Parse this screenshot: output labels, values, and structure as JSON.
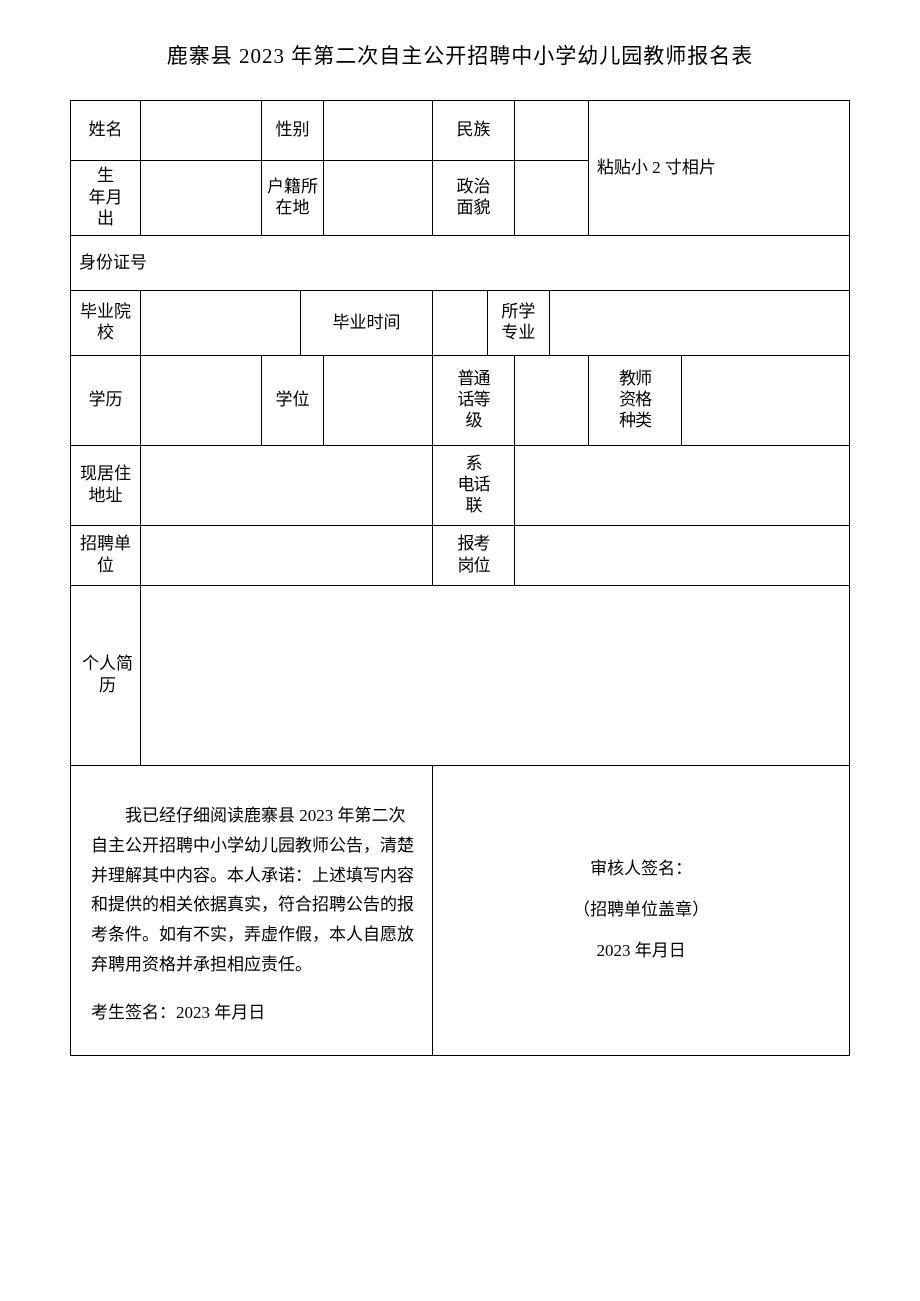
{
  "title": "鹿寨县 2023 年第二次自主公开招聘中小学幼儿园教师报名表",
  "labels": {
    "name": "姓名",
    "gender": "性别",
    "ethnicity": "民族",
    "birth": "生\n年月\n出",
    "hometown": "户籍所\n在地",
    "political": "政治\n面貌",
    "photo": "粘贴小 2 寸相片",
    "id_number": "身份证号",
    "grad_school": "毕业院\n校",
    "grad_time": "毕业时间",
    "major": "所学\n专业",
    "education": "学历",
    "degree": "学位",
    "mandarin": "普通\n话等\n级",
    "teacher_cert": "教师\n资格\n种类",
    "address": "现居住\n地址",
    "phone": "系\n电话\n联",
    "employer": "招聘单\n位",
    "position": "报考\n岗位",
    "resume": "个人简\n历"
  },
  "declaration": {
    "text": "我已经仔细阅读鹿寨县 2023 年第二次自主公开招聘中小学幼儿园教师公告，清楚并理解其中内容。本人承诺：上述填写内容和提供的相关依据真实，符合招聘公告的报考条件。如有不实，弄虚作假，本人自愿放弃聘用资格并承担相应责任。",
    "applicant_sign": "考生签名：2023 年月日",
    "reviewer_sign": "审核人签名：",
    "stamp": "（招聘单位盖章）",
    "date": "2023 年月日"
  },
  "values": {
    "name": "",
    "gender": "",
    "ethnicity": "",
    "birth": "",
    "hometown": "",
    "political": "",
    "id_number": "",
    "grad_school": "",
    "grad_time": "",
    "major": "",
    "education": "",
    "degree": "",
    "mandarin": "",
    "teacher_cert": "",
    "address": "",
    "phone": "",
    "employer": "",
    "position": "",
    "resume": ""
  },
  "style": {
    "border_color": "#000000",
    "background": "#ffffff",
    "text_color": "#000000",
    "title_fontsize": 21,
    "cell_fontsize": 17
  }
}
